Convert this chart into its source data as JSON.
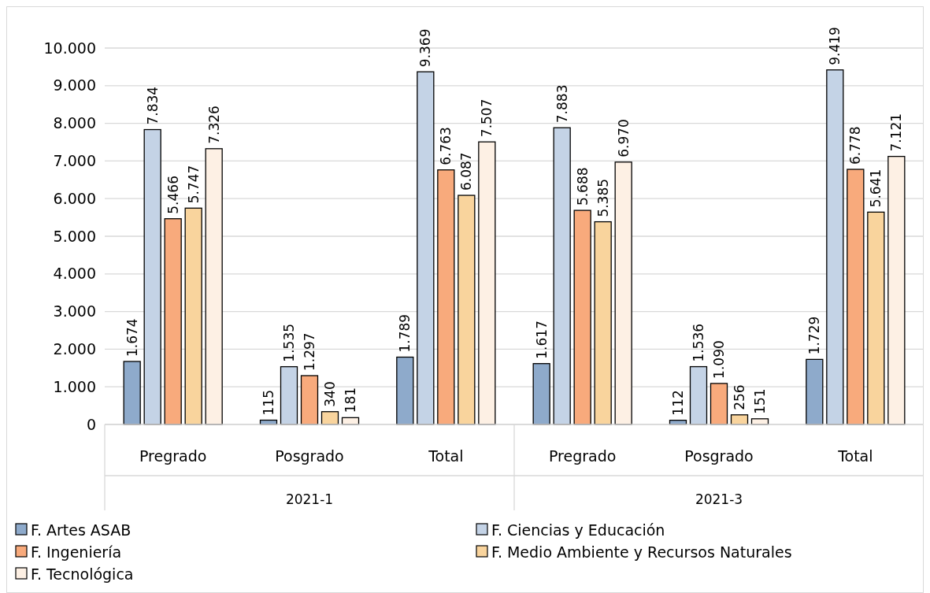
{
  "chart_data": {
    "type": "bar",
    "categories": [
      "Pregrado",
      "Posgrado",
      "Total",
      "Pregrado",
      "Posgrado",
      "Total"
    ],
    "annotations": [
      "2021-1",
      "2021-3"
    ],
    "ylim": [
      0,
      10000
    ],
    "yticks": [
      {
        "value": 0,
        "label": "0"
      },
      {
        "value": 1000,
        "label": "1.000"
      },
      {
        "value": 2000,
        "label": "2.000"
      },
      {
        "value": 3000,
        "label": "3.000"
      },
      {
        "value": 4000,
        "label": "4.000"
      },
      {
        "value": 5000,
        "label": "5.000"
      },
      {
        "value": 6000,
        "label": "6.000"
      },
      {
        "value": 7000,
        "label": "7.000"
      },
      {
        "value": 8000,
        "label": "8.000"
      },
      {
        "value": 9000,
        "label": "9.000"
      },
      {
        "value": 10000,
        "label": "10.000"
      }
    ],
    "grid": "y",
    "legend": "bottom",
    "series": [
      {
        "name": "F. Artes ASAB",
        "color": "#8eaacb",
        "values": [
          1674,
          115,
          1789,
          1617,
          112,
          1729
        ],
        "value_labels": [
          "1.674",
          "115",
          "1.789",
          "1.617",
          "112",
          "1.729"
        ]
      },
      {
        "name": "F. Ciencias y Educación",
        "color": "#c4d3e6",
        "values": [
          7834,
          1535,
          9369,
          7883,
          1536,
          9419
        ],
        "value_labels": [
          "7.834",
          "1.535",
          "9.369",
          "7.883",
          "1.536",
          "9.419"
        ]
      },
      {
        "name": "F. Ingeniería",
        "color": "#f8aa7c",
        "values": [
          5466,
          1297,
          6763,
          5688,
          1090,
          6778
        ],
        "value_labels": [
          "5.466",
          "1.297",
          "6.763",
          "5.688",
          "1.090",
          "6.778"
        ]
      },
      {
        "name": "F. Medio Ambiente y Recursos Naturales",
        "color": "#f9d49d",
        "values": [
          5747,
          340,
          6087,
          5385,
          256,
          5641
        ],
        "value_labels": [
          "5.747",
          "340",
          "6.087",
          "5.385",
          "256",
          "5.641"
        ]
      },
      {
        "name": "F. Tecnológica",
        "color": "#fdf0e4",
        "values": [
          7326,
          181,
          7507,
          6970,
          151,
          7121
        ],
        "value_labels": [
          "7.326",
          "181",
          "7.507",
          "6.970",
          "151",
          "7.121"
        ]
      }
    ]
  }
}
